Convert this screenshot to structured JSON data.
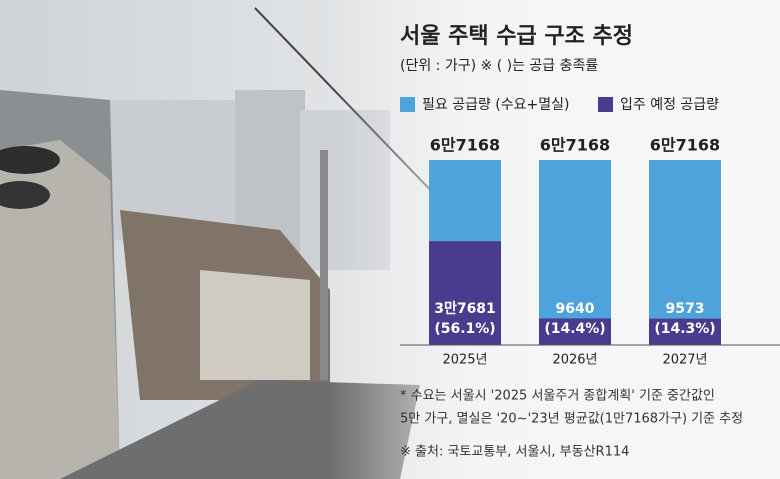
{
  "chart_data": {
    "type": "bar",
    "title": "서울 주택 수급 구조 추정",
    "subtitle": "(단위 : 가구) ※ ( )는 공급 충족률",
    "categories": [
      "2025년",
      "2026년",
      "2027년"
    ],
    "series": [
      {
        "name": "필요 공급량 (수요+멸실)",
        "color": "#4fa3dc",
        "values": [
          67168,
          67168,
          67168
        ],
        "value_labels": [
          "6만7168",
          "6만7168",
          "6만7168"
        ]
      },
      {
        "name": "입주 예정 공급량",
        "color": "#4b3b8f",
        "values": [
          37681,
          9640,
          9573
        ],
        "value_labels": [
          "3만7681",
          "9640",
          "9573"
        ],
        "ratio_labels": [
          "(56.1%)",
          "(14.4%)",
          "(14.3%)"
        ]
      }
    ],
    "ylim": [
      0,
      67168
    ],
    "notes": [
      "* 수요는 서울시 '2025 서울주거 종합계획' 기준 중간값인",
      "5만 가구, 멸실은 '20~'23년 평균값(1만7168가구) 기준 추정",
      "※ 출처: 국토교통부, 서울시, 부동산R114"
    ]
  }
}
